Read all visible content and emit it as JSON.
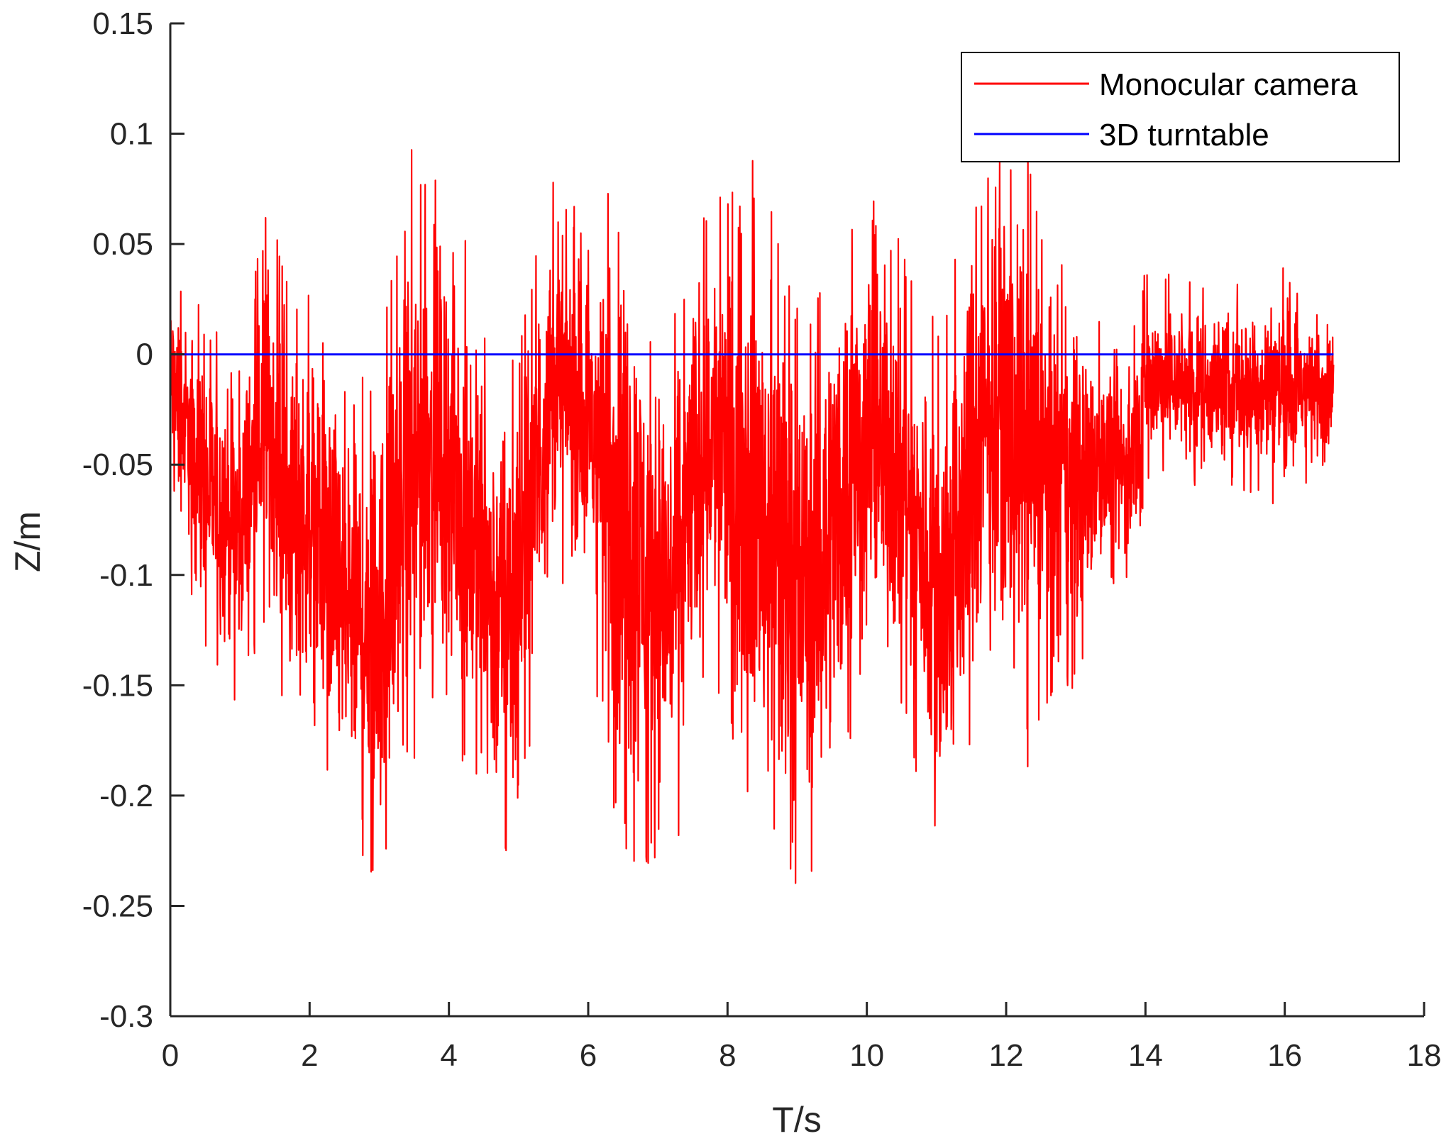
{
  "chart_data": {
    "type": "line",
    "xlabel": "T/s",
    "ylabel": "Z/m",
    "xlim": [
      0,
      18
    ],
    "ylim": [
      -0.3,
      0.15
    ],
    "x_ticks": [
      0,
      2,
      4,
      6,
      8,
      10,
      12,
      14,
      16,
      18
    ],
    "x_tick_labels": [
      "0",
      "2",
      "4",
      "6",
      "8",
      "10",
      "12",
      "14",
      "16",
      "18"
    ],
    "y_ticks": [
      0.15,
      0.1,
      0.05,
      0,
      -0.05,
      -0.1,
      -0.15,
      -0.2,
      -0.25,
      -0.3
    ],
    "y_tick_labels": [
      "0.15",
      "0.1",
      "0.05",
      "0",
      "-0.05",
      "-0.1",
      "-0.15",
      "-0.2",
      "-0.25",
      "-0.3"
    ],
    "grid": false,
    "legend_position": "top-right",
    "series": [
      {
        "name": "Monocular camera",
        "color": "#ff0000",
        "x_range": [
          0,
          16.7
        ],
        "sample_count": 4200,
        "envelope": {
          "x": [
            0,
            0.5,
            1.0,
            1.4,
            1.7,
            2.0,
            2.5,
            3.0,
            3.5,
            3.8,
            4.2,
            4.7,
            5.0,
            5.5,
            6.0,
            6.3,
            6.8,
            7.2,
            7.7,
            8.0,
            8.4,
            8.8,
            9.2,
            9.6,
            10.0,
            10.4,
            10.8,
            11.1,
            11.5,
            11.9,
            12.3,
            12.7,
            13.0,
            13.4,
            13.8,
            14.0,
            15.0,
            16.0,
            16.7
          ],
          "y_min": [
            -0.06,
            -0.14,
            -0.16,
            -0.12,
            -0.18,
            -0.17,
            -0.23,
            -0.25,
            -0.2,
            -0.15,
            -0.19,
            -0.24,
            -0.23,
            -0.1,
            -0.12,
            -0.22,
            -0.24,
            -0.24,
            -0.14,
            -0.17,
            -0.22,
            -0.24,
            -0.24,
            -0.2,
            -0.15,
            -0.16,
            -0.2,
            -0.25,
            -0.19,
            -0.12,
            -0.19,
            -0.15,
            -0.16,
            -0.11,
            -0.11,
            -0.06,
            -0.06,
            -0.07,
            -0.05
          ],
          "y_max": [
            0.04,
            0.02,
            0.0,
            0.07,
            0.03,
            0.03,
            0.0,
            0.0,
            0.1,
            0.08,
            0.06,
            0.0,
            0.02,
            0.08,
            0.06,
            0.11,
            0.05,
            0.02,
            0.08,
            0.07,
            0.1,
            0.04,
            0.02,
            0.07,
            0.08,
            0.06,
            0.02,
            0.02,
            0.08,
            0.09,
            0.09,
            0.05,
            0.04,
            0.01,
            0.01,
            0.04,
            0.03,
            0.04,
            0.02
          ]
        }
      },
      {
        "name": "3D turntable",
        "color": "#0000ff",
        "x": [
          0,
          16.7
        ],
        "values": [
          0,
          0
        ]
      }
    ]
  }
}
